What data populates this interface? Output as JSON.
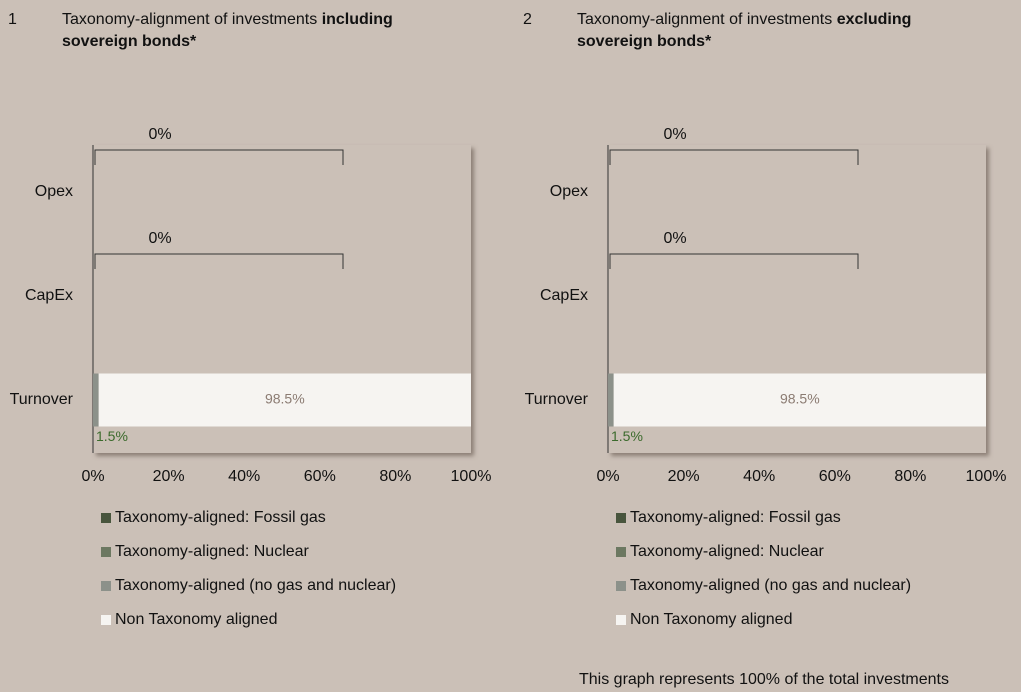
{
  "chart_data": [
    {
      "type": "bar",
      "number": "1",
      "title": "Taxonomy-alignment of investments",
      "title_emphasis": "including sovereign bonds*",
      "categories": [
        "Opex",
        "CapEx",
        "Turnover"
      ],
      "annotations": [
        "0%",
        "0%",
        null
      ],
      "series": [
        {
          "name": "Taxonomy-aligned: Fossil gas",
          "color": "#48553d",
          "values": [
            0,
            0,
            0
          ]
        },
        {
          "name": "Taxonomy-aligned: Nuclear",
          "color": "#6c7861",
          "values": [
            0,
            0,
            0
          ]
        },
        {
          "name": "Taxonomy-aligned (no gas and nuclear)",
          "color": "#8c918a",
          "values": [
            0,
            0,
            1.5
          ],
          "value_labels": [
            null,
            null,
            "1.5%"
          ]
        },
        {
          "name": "Non Taxonomy aligned",
          "color": "#f6f4f1",
          "values": [
            null,
            null,
            98.5
          ],
          "value_labels": [
            null,
            null,
            "98.5%"
          ]
        }
      ],
      "xlim": [
        0,
        100
      ],
      "xticks": [
        {
          "value": 0,
          "label": "0%"
        },
        {
          "value": 20,
          "label": "20%"
        },
        {
          "value": 40,
          "label": "40%"
        },
        {
          "value": 60,
          "label": "60%"
        },
        {
          "value": 80,
          "label": "80%"
        },
        {
          "value": 100,
          "label": "100%"
        }
      ]
    },
    {
      "type": "bar",
      "number": "2",
      "title": "Taxonomy-alignment of investments",
      "title_emphasis": "excluding sovereign bonds*",
      "categories": [
        "Opex",
        "CapEx",
        "Turnover"
      ],
      "annotations": [
        "0%",
        "0%",
        null
      ],
      "series": [
        {
          "name": "Taxonomy-aligned: Fossil gas",
          "color": "#48553d",
          "values": [
            0,
            0,
            0
          ]
        },
        {
          "name": "Taxonomy-aligned: Nuclear",
          "color": "#6c7861",
          "values": [
            0,
            0,
            0
          ]
        },
        {
          "name": "Taxonomy-aligned (no gas and nuclear)",
          "color": "#8c918a",
          "values": [
            0,
            0,
            1.5
          ],
          "value_labels": [
            null,
            null,
            "1.5%"
          ]
        },
        {
          "name": "Non Taxonomy aligned",
          "color": "#f6f4f1",
          "values": [
            null,
            null,
            98.5
          ],
          "value_labels": [
            null,
            null,
            "98.5%"
          ]
        }
      ],
      "xlim": [
        0,
        100
      ],
      "xticks": [
        {
          "value": 0,
          "label": "0%"
        },
        {
          "value": 20,
          "label": "20%"
        },
        {
          "value": 40,
          "label": "40%"
        },
        {
          "value": 60,
          "label": "60%"
        },
        {
          "value": 80,
          "label": "80%"
        },
        {
          "value": 100,
          "label": "100%"
        }
      ]
    }
  ],
  "note": "This graph represents 100% of the total investments"
}
